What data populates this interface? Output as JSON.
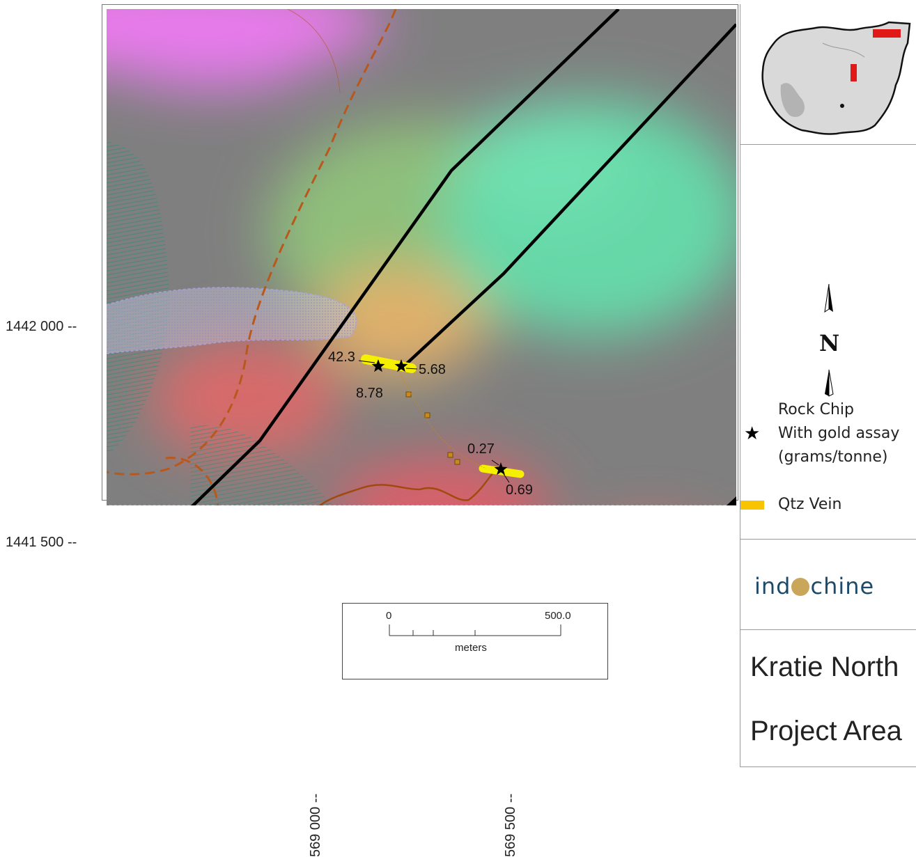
{
  "axes": {
    "y_ticks": [
      "1442 000 --",
      "1441 500 --"
    ],
    "x_ticks": [
      "569 000 --",
      "569 500 --"
    ]
  },
  "map": {
    "assay_labels": [
      "42.3",
      "5.68",
      "8.78",
      "0.27",
      "0.69"
    ],
    "scale_bar": {
      "start": "0",
      "end": "500.0",
      "unit": "meters"
    }
  },
  "legend": {
    "rock_chip_line1": "Rock Chip",
    "rock_chip_line2": "With gold assay",
    "rock_chip_line3": "(grams/tonne)",
    "qtz_vein": "Qtz Vein",
    "north_letter": "N",
    "colors": {
      "qtz_vein": "#f8c400",
      "rock_chip": "#000000",
      "road": "#b8581a"
    }
  },
  "logo": {
    "text_left": "ind",
    "text_right": "chine"
  },
  "title": {
    "line1": "Kratie North",
    "line2": "Project Area"
  }
}
